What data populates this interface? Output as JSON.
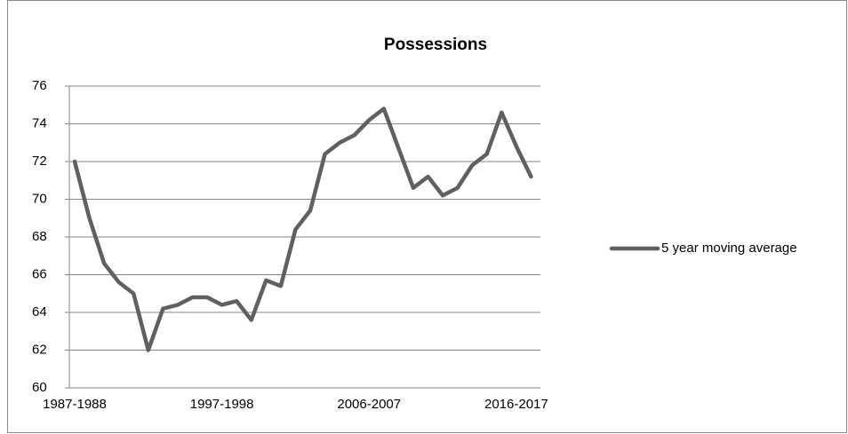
{
  "chart_data": {
    "type": "line",
    "title": "Possessions",
    "categories": [
      "1987-1988",
      null,
      null,
      null,
      null,
      null,
      null,
      null,
      null,
      null,
      "1997-1998",
      null,
      null,
      null,
      null,
      null,
      null,
      null,
      null,
      null,
      "2006-2007",
      null,
      null,
      null,
      null,
      null,
      null,
      null,
      null,
      null,
      "2016-2017",
      null
    ],
    "series": [
      {
        "name": "5 year moving average",
        "color": "#606060",
        "values": [
          72,
          69,
          66.6,
          65.6,
          65,
          62,
          64.2,
          64.4,
          64.8,
          64.8,
          64.4,
          64.6,
          63.6,
          65.7,
          65.4,
          68.4,
          69.4,
          72.4,
          73,
          73.4,
          74.2,
          74.8,
          72.7,
          70.6,
          71.2,
          70.2,
          70.6,
          71.8,
          72.4,
          74.6,
          72.8,
          71.2
        ]
      }
    ],
    "ylim": [
      60,
      76
    ],
    "yticks": [
      60,
      62,
      64,
      66,
      68,
      70,
      72,
      74,
      76
    ],
    "grid": true,
    "legend": "right"
  }
}
